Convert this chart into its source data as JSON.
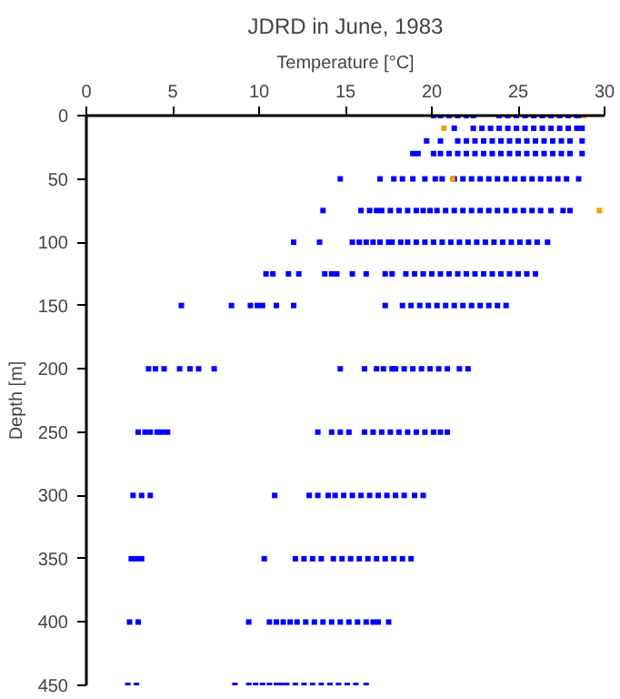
{
  "chart_data": {
    "type": "scatter",
    "title": "JDRD in June, 1983",
    "xlabel": "Temperature [°C]",
    "ylabel": "Depth [m]",
    "xlim": [
      0,
      30
    ],
    "xticks": [
      0,
      5,
      10,
      15,
      20,
      25,
      30
    ],
    "ylim": [
      450,
      0
    ],
    "yticks": [
      0,
      50,
      100,
      150,
      200,
      250,
      300,
      350,
      400,
      450
    ],
    "grid": false,
    "marker": "square",
    "series": [
      {
        "color": "#0000ff",
        "x": [
          20.1,
          20.5,
          21.0,
          21.5,
          22.0,
          22.4,
          23.9,
          24.4,
          24.9,
          25.4,
          25.9,
          26.4,
          26.9,
          27.4,
          27.9,
          28.4,
          28.7,
          21.3,
          22.4,
          22.9,
          23.4,
          23.9,
          24.4,
          24.9,
          25.4,
          25.9,
          26.4,
          26.9,
          27.4,
          27.9,
          28.4,
          28.7,
          19.7,
          20.5,
          21.5,
          22.0,
          22.5,
          23.0,
          23.5,
          24.0,
          24.5,
          25.0,
          25.5,
          26.0,
          26.5,
          27.0,
          27.5,
          28.0,
          28.7,
          18.9,
          19.2,
          20.1,
          20.5,
          21.0,
          21.5,
          22.0,
          22.5,
          23.0,
          23.5,
          24.0,
          24.5,
          25.0,
          25.5,
          26.0,
          26.5,
          27.0,
          27.5,
          28.0,
          28.7,
          14.7,
          17.0,
          17.8,
          18.3,
          18.9,
          19.6,
          20.2,
          20.6,
          21.3,
          21.8,
          22.3,
          22.8,
          23.3,
          23.8,
          24.3,
          24.8,
          25.3,
          25.8,
          26.3,
          26.8,
          27.3,
          27.8,
          28.5,
          13.7,
          15.9,
          16.4,
          16.8,
          17.1,
          17.6,
          18.1,
          18.6,
          19.1,
          19.5,
          19.9,
          20.3,
          20.8,
          21.3,
          21.8,
          22.3,
          22.8,
          23.3,
          23.8,
          24.3,
          24.8,
          25.3,
          25.8,
          26.3,
          26.9,
          27.6,
          28.0,
          12.0,
          13.5,
          15.4,
          15.8,
          16.2,
          16.6,
          17.0,
          17.5,
          17.7,
          18.2,
          18.6,
          19.1,
          19.6,
          20.1,
          20.6,
          21.1,
          21.6,
          22.1,
          22.6,
          23.1,
          23.6,
          24.1,
          24.6,
          25.1,
          25.6,
          26.1,
          26.7,
          10.4,
          10.8,
          11.7,
          12.3,
          13.8,
          14.2,
          14.5,
          15.4,
          16.2,
          17.3,
          17.7,
          18.5,
          19.0,
          19.5,
          20.0,
          20.5,
          21.0,
          21.5,
          22.0,
          22.5,
          23.0,
          23.5,
          24.0,
          24.5,
          25.0,
          25.5,
          26.0,
          5.5,
          8.4,
          9.5,
          9.9,
          10.2,
          11.0,
          12.0,
          17.3,
          18.3,
          18.8,
          19.3,
          19.8,
          20.3,
          20.8,
          21.3,
          21.8,
          22.3,
          22.8,
          23.3,
          23.8,
          24.3,
          3.6,
          4.0,
          4.5,
          5.4,
          6.0,
          6.5,
          7.4,
          14.7,
          16.1,
          16.8,
          17.2,
          17.7,
          17.9,
          18.4,
          18.9,
          19.4,
          19.9,
          20.4,
          20.9,
          21.6,
          22.1,
          3.0,
          3.4,
          3.7,
          4.1,
          4.4,
          4.7,
          13.4,
          14.2,
          14.7,
          15.2,
          16.1,
          16.6,
          17.1,
          17.6,
          18.1,
          18.6,
          19.1,
          19.6,
          20.1,
          20.5,
          20.9,
          2.7,
          3.2,
          3.7,
          10.9,
          12.9,
          13.4,
          14.0,
          14.4,
          14.9,
          15.4,
          15.9,
          16.4,
          16.9,
          17.4,
          17.9,
          18.4,
          19.0,
          19.5,
          2.6,
          2.9,
          3.2,
          10.3,
          12.1,
          12.6,
          13.1,
          13.6,
          14.3,
          14.8,
          15.3,
          15.8,
          16.3,
          16.8,
          17.3,
          17.8,
          18.3,
          18.8,
          2.5,
          3.0,
          9.4,
          10.6,
          11.0,
          11.4,
          11.8,
          12.2,
          12.7,
          13.2,
          13.7,
          14.2,
          14.7,
          15.2,
          15.7,
          16.2,
          16.6,
          16.9,
          17.5,
          2.4,
          2.9,
          8.6,
          9.4,
          9.8,
          10.2,
          10.6,
          11.0,
          11.3,
          11.6,
          12.1,
          12.6,
          13.1,
          13.6,
          14.1,
          14.6,
          15.1,
          15.6,
          16.2
        ],
        "values": [
          0,
          0,
          0,
          0,
          0,
          0,
          0,
          0,
          0,
          0,
          0,
          0,
          0,
          0,
          0,
          0,
          0,
          10,
          10,
          10,
          10,
          10,
          10,
          10,
          10,
          10,
          10,
          10,
          10,
          10,
          10,
          10,
          20,
          20,
          20,
          20,
          20,
          20,
          20,
          20,
          20,
          20,
          20,
          20,
          20,
          20,
          20,
          20,
          20,
          30,
          30,
          30,
          30,
          30,
          30,
          30,
          30,
          30,
          30,
          30,
          30,
          30,
          30,
          30,
          30,
          30,
          30,
          30,
          30,
          50,
          50,
          50,
          50,
          50,
          50,
          50,
          50,
          50,
          50,
          50,
          50,
          50,
          50,
          50,
          50,
          50,
          50,
          50,
          50,
          50,
          50,
          50,
          75,
          75,
          75,
          75,
          75,
          75,
          75,
          75,
          75,
          75,
          75,
          75,
          75,
          75,
          75,
          75,
          75,
          75,
          75,
          75,
          75,
          75,
          75,
          75,
          75,
          75,
          75,
          100,
          100,
          100,
          100,
          100,
          100,
          100,
          100,
          100,
          100,
          100,
          100,
          100,
          100,
          100,
          100,
          100,
          100,
          100,
          100,
          100,
          100,
          100,
          100,
          100,
          100,
          100,
          125,
          125,
          125,
          125,
          125,
          125,
          125,
          125,
          125,
          125,
          125,
          125,
          125,
          125,
          125,
          125,
          125,
          125,
          125,
          125,
          125,
          125,
          125,
          125,
          125,
          125,
          125,
          150,
          150,
          150,
          150,
          150,
          150,
          150,
          150,
          150,
          150,
          150,
          150,
          150,
          150,
          150,
          150,
          150,
          150,
          150,
          150,
          150,
          200,
          200,
          200,
          200,
          200,
          200,
          200,
          200,
          200,
          200,
          200,
          200,
          200,
          200,
          200,
          200,
          200,
          200,
          200,
          200,
          200,
          250,
          250,
          250,
          250,
          250,
          250,
          250,
          250,
          250,
          250,
          250,
          250,
          250,
          250,
          250,
          250,
          250,
          250,
          250,
          250,
          250,
          300,
          300,
          300,
          300,
          300,
          300,
          300,
          300,
          300,
          300,
          300,
          300,
          300,
          300,
          300,
          300,
          300,
          300,
          350,
          350,
          350,
          350,
          350,
          350,
          350,
          350,
          350,
          350,
          350,
          350,
          350,
          350,
          350,
          350,
          350,
          350,
          400,
          400,
          400,
          400,
          400,
          400,
          400,
          400,
          400,
          400,
          400,
          400,
          400,
          400,
          400,
          400,
          400,
          400,
          400,
          450,
          450,
          450,
          450,
          450,
          450,
          450,
          450,
          450,
          450,
          450,
          450,
          450,
          450,
          450,
          450,
          450,
          450,
          450
        ]
      },
      {
        "color": "#f0a000",
        "x": [
          28.8,
          20.7,
          21.2,
          29.7
        ],
        "values": [
          0,
          10,
          50,
          75
        ]
      }
    ]
  }
}
